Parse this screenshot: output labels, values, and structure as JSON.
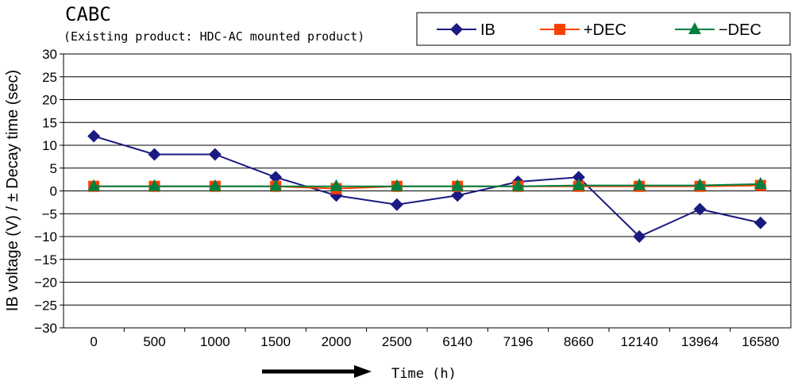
{
  "chart_data": {
    "type": "line",
    "title": "CABC",
    "subtitle": "(Existing product: HDC-AC mounted product)",
    "ylabel": "IB voltage (V)  / ± Decay time (sec)",
    "xlabel": "Time (h)",
    "ylim": [
      -30,
      30
    ],
    "ytick_step": 5,
    "yticks": [
      "30",
      "25",
      "20",
      "15",
      "10",
      "5",
      "0",
      "−5",
      "−10",
      "−15",
      "−20",
      "−25",
      "−30"
    ],
    "grid": true,
    "legend_position": "top-right",
    "categories": [
      "0",
      "500",
      "1000",
      "1500",
      "2000",
      "2500",
      "6140",
      "7196",
      "8660",
      "12140",
      "13964",
      "16580"
    ],
    "series": [
      {
        "name": "IB",
        "color": "#1a1a80",
        "marker": "diamond",
        "values": [
          12,
          8,
          8,
          3,
          -1,
          -3,
          -1,
          2,
          3,
          -10,
          -4,
          -7
        ]
      },
      {
        "name": "+DEC",
        "color": "#ff4000",
        "marker": "square",
        "values": [
          1,
          1,
          1,
          1,
          0.5,
          1,
          1,
          1,
          1,
          1,
          1,
          1.2
        ]
      },
      {
        "name": "−DEC",
        "color": "#008040",
        "marker": "triangle",
        "values": [
          1,
          1,
          1,
          1,
          1,
          1,
          1,
          1,
          1.2,
          1.2,
          1.2,
          1.5
        ]
      }
    ]
  }
}
